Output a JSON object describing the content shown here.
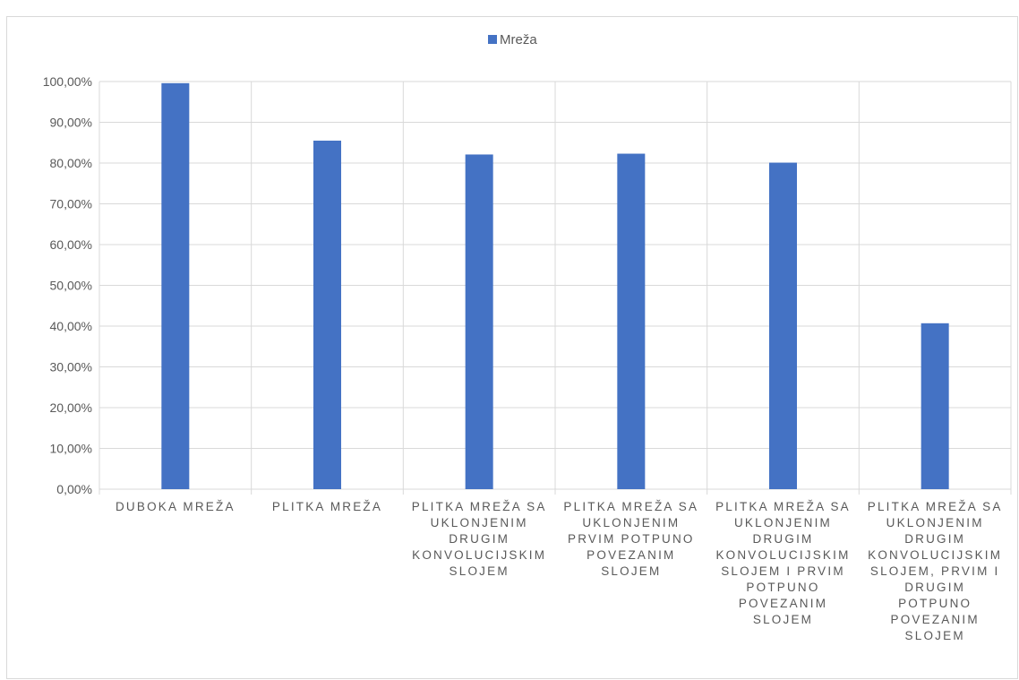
{
  "chart_data": {
    "type": "bar",
    "title": "",
    "xlabel": "",
    "ylabel": "",
    "ylim": [
      0,
      100
    ],
    "y_tick_step": 10,
    "y_tick_format": "percent-2dec-comma",
    "grid": true,
    "legend_placement": "top",
    "categories": [
      [
        "DUBOKA MREŽA"
      ],
      [
        "PLITKA MREŽA"
      ],
      [
        "PLITKA MREŽA SA",
        "UKLONJENIM",
        "DRUGIM",
        "KONVOLUCIJSKIM",
        "SLOJEM"
      ],
      [
        "PLITKA MREŽA SA",
        "UKLONJENIM",
        "PRVIM POTPUNO",
        "POVEZANIM",
        "SLOJEM"
      ],
      [
        "PLITKA MREŽA SA",
        "UKLONJENIM",
        "DRUGIM",
        "KONVOLUCIJSKIM",
        "SLOJEM I PRVIM",
        "POTPUNO",
        "POVEZANIM",
        "SLOJEM"
      ],
      [
        "PLITKA MREŽA SA",
        "UKLONJENIM",
        "DRUGIM",
        "KONVOLUCIJSKIM",
        "SLOJEM, PRVIM I",
        "DRUGIM",
        "POTPUNO",
        "POVEZANIM",
        "SLOJEM"
      ]
    ],
    "series": [
      {
        "name": "Mreža",
        "color": "#4472c4",
        "values": [
          99.6,
          85.5,
          82.1,
          82.3,
          80.1,
          40.7
        ]
      }
    ]
  }
}
